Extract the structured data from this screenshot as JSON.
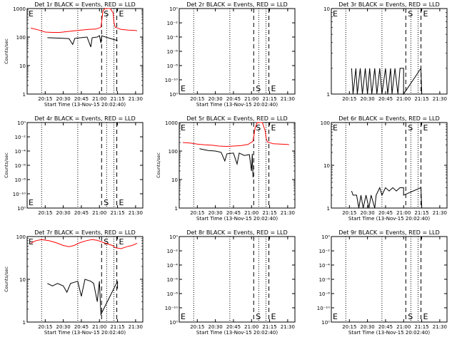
{
  "figure": {
    "panels": [
      {
        "title": "Det 1r BLACK = Events, RED = LLD",
        "ylabel": "Counts/sec",
        "xlabel": "Start Time (13-Nov-15 20:02:40)",
        "y_scale": "log",
        "ylim": [
          1,
          1000
        ],
        "y_ticks": [
          {
            "v": 1,
            "t": "1"
          },
          {
            "v": 10,
            "t": "10"
          },
          {
            "v": 100,
            "t": "100"
          },
          {
            "v": 1000,
            "t": "1000"
          }
        ],
        "x_ticks": [
          "20:15",
          "20:30",
          "20:45",
          "21:00",
          "21:15",
          "21:30"
        ],
        "markers": {
          "S": "S",
          "E": "E"
        },
        "black_series": [
          [
            20.28,
            95
          ],
          [
            20.4,
            92
          ],
          [
            20.5,
            90
          ],
          [
            20.58,
            88
          ],
          [
            20.63,
            55
          ],
          [
            20.66,
            90
          ],
          [
            20.75,
            95
          ],
          [
            20.83,
            100
          ],
          [
            20.88,
            45
          ],
          [
            20.9,
            95
          ],
          [
            20.97,
            100
          ],
          [
            21.0,
            112
          ],
          [
            21.02,
            62
          ],
          [
            21.03,
            110
          ],
          [
            21.25,
            75
          ]
        ],
        "red_series": [
          [
            20.05,
            205
          ],
          [
            20.15,
            180
          ],
          [
            20.25,
            150
          ],
          [
            20.35,
            145
          ],
          [
            20.45,
            145
          ],
          [
            20.55,
            155
          ],
          [
            20.65,
            165
          ],
          [
            20.75,
            175
          ],
          [
            20.85,
            185
          ],
          [
            20.95,
            190
          ],
          [
            21.02,
            220
          ],
          [
            21.05,
            850
          ],
          [
            21.08,
            1000
          ],
          [
            21.15,
            1000
          ],
          [
            21.19,
            700
          ],
          [
            21.2,
            330
          ],
          [
            21.22,
            220
          ],
          [
            21.3,
            185
          ],
          [
            21.4,
            175
          ],
          [
            21.5,
            170
          ],
          [
            21.52,
            165
          ]
        ]
      },
      {
        "title": "Det 2r BLACK = Events, RED = LLD",
        "ylabel": "",
        "xlabel": "Start Time (13-Nov-15 20:02:40)",
        "y_scale": "linear",
        "ylim": [
          0,
          1
        ],
        "y_ticks": [
          {
            "v": 0.0,
            "t": "10⁰"
          },
          {
            "v": 0.167,
            "t": "10⁻¹⁰"
          },
          {
            "v": 0.333,
            "t": "10⁻⁸"
          },
          {
            "v": 0.5,
            "t": "10⁻⁶"
          },
          {
            "v": 0.667,
            "t": "10⁻⁴"
          },
          {
            "v": 0.833,
            "t": "10⁻²"
          },
          {
            "v": 1.0,
            "t": "10⁰"
          }
        ],
        "x_ticks": [
          "20:15",
          "20:30",
          "20:45",
          "21:00",
          "21:15",
          "21:30"
        ],
        "markers": {
          "S": "S",
          "E": "E"
        },
        "black_series": [],
        "red_series": []
      },
      {
        "title": "Det 3r BLACK = Events, RED = LLD",
        "ylabel": "",
        "xlabel": "",
        "y_scale": "log",
        "ylim": [
          1,
          10
        ],
        "y_ticks": [
          {
            "v": 1,
            "t": "1"
          },
          {
            "v": 10,
            "t": "10"
          }
        ],
        "x_ticks": [
          "20:15",
          "20:30",
          "20:45",
          "21:00",
          "21:15",
          "21:30"
        ],
        "markers": {
          "S": "S",
          "E": "E"
        },
        "black_series": [
          [
            20.28,
            2
          ],
          [
            20.3,
            1
          ],
          [
            20.34,
            2
          ],
          [
            20.36,
            1
          ],
          [
            20.4,
            2
          ],
          [
            20.43,
            1
          ],
          [
            20.47,
            2
          ],
          [
            20.5,
            1
          ],
          [
            20.53,
            2
          ],
          [
            20.56,
            1
          ],
          [
            20.6,
            2
          ],
          [
            20.63,
            1
          ],
          [
            20.67,
            2
          ],
          [
            20.7,
            1
          ],
          [
            20.75,
            2
          ],
          [
            20.78,
            1
          ],
          [
            20.82,
            2
          ],
          [
            20.84,
            1
          ],
          [
            20.88,
            2
          ],
          [
            20.92,
            1
          ],
          [
            20.95,
            2
          ],
          [
            21.0,
            2
          ],
          [
            21.0,
            1
          ],
          [
            21.24,
            2
          ],
          [
            21.25,
            1
          ]
        ],
        "red_series": []
      },
      {
        "title": "Det 4r BLACK = Events, RED = LLD",
        "ylabel": "Counts/sec",
        "xlabel": "",
        "y_scale": "linear",
        "ylim": [
          0,
          1
        ],
        "y_ticks": [
          {
            "v": 0.0,
            "t": "10⁰"
          },
          {
            "v": 0.167,
            "t": "10⁻¹⁰"
          },
          {
            "v": 0.333,
            "t": "10⁻⁸"
          },
          {
            "v": 0.5,
            "t": "10⁻⁶"
          },
          {
            "v": 0.667,
            "t": "10⁻⁴"
          },
          {
            "v": 0.833,
            "t": "10⁻²"
          },
          {
            "v": 1.0,
            "t": "10⁰"
          }
        ],
        "x_ticks": [
          "20:15",
          "20:30",
          "20:45",
          "21:00",
          "21:15",
          "21:30"
        ],
        "markers": {
          "S": "S",
          "E": "E"
        },
        "black_series": [],
        "red_series": []
      },
      {
        "title": "Det 5r BLACK = Events, RED = LLD",
        "ylabel": "Counts/sec",
        "xlabel": "Start Time (13-Nov-15 20:02:40)",
        "y_scale": "log",
        "ylim": [
          1,
          1000
        ],
        "y_ticks": [
          {
            "v": 1,
            "t": "1"
          },
          {
            "v": 10,
            "t": "10"
          },
          {
            "v": 100,
            "t": "100"
          },
          {
            "v": 1000,
            "t": "1000"
          }
        ],
        "x_ticks": [
          "20:15",
          "20:30",
          "20:45",
          "21:00",
          "21:15",
          "21:30"
        ],
        "markers": {
          "S": "S",
          "E": "E"
        },
        "black_series": [
          [
            20.28,
            120
          ],
          [
            20.4,
            105
          ],
          [
            20.5,
            100
          ],
          [
            20.58,
            90
          ],
          [
            20.63,
            45
          ],
          [
            20.66,
            80
          ],
          [
            20.75,
            85
          ],
          [
            20.8,
            35
          ],
          [
            20.83,
            85
          ],
          [
            20.9,
            70
          ],
          [
            20.97,
            75
          ],
          [
            21.0,
            20
          ],
          [
            21.01,
            80
          ],
          [
            21.02,
            12
          ]
        ],
        "red_series": [
          [
            20.05,
            200
          ],
          [
            20.15,
            190
          ],
          [
            20.25,
            175
          ],
          [
            20.35,
            165
          ],
          [
            20.45,
            160
          ],
          [
            20.55,
            150
          ],
          [
            20.65,
            145
          ],
          [
            20.75,
            150
          ],
          [
            20.85,
            155
          ],
          [
            20.95,
            170
          ],
          [
            21.02,
            220
          ],
          [
            21.05,
            650
          ],
          [
            21.08,
            1000
          ],
          [
            21.15,
            1000
          ],
          [
            21.19,
            500
          ],
          [
            21.2,
            300
          ],
          [
            21.22,
            210
          ],
          [
            21.3,
            180
          ],
          [
            21.4,
            175
          ],
          [
            21.5,
            170
          ],
          [
            21.52,
            165
          ]
        ]
      },
      {
        "title": "Det 6r BLACK = Events, RED = LLD",
        "ylabel": "",
        "xlabel": "Start Time (13-Nov-15 20:02:40)",
        "y_scale": "log",
        "ylim": [
          1,
          100
        ],
        "y_ticks": [
          {
            "v": 1,
            "t": "1"
          },
          {
            "v": 10,
            "t": "10"
          },
          {
            "v": 100,
            "t": "100"
          }
        ],
        "x_ticks": [
          "20:15",
          "20:30",
          "20:45",
          "21:00",
          "21:15",
          "21:30"
        ],
        "markers": {
          "S": "S",
          "E": "E"
        },
        "black_series": [
          [
            20.28,
            2.5
          ],
          [
            20.3,
            2
          ],
          [
            20.35,
            2
          ],
          [
            20.38,
            1
          ],
          [
            20.41,
            2
          ],
          [
            20.44,
            1
          ],
          [
            20.48,
            2
          ],
          [
            20.52,
            1
          ],
          [
            20.55,
            2
          ],
          [
            20.6,
            1
          ],
          [
            20.62,
            2
          ],
          [
            20.67,
            3
          ],
          [
            20.7,
            2
          ],
          [
            20.75,
            3
          ],
          [
            20.8,
            2.5
          ],
          [
            20.85,
            3
          ],
          [
            20.9,
            2.5
          ],
          [
            20.95,
            3
          ],
          [
            21.0,
            3
          ],
          [
            21.0,
            2
          ],
          [
            21.24,
            3
          ],
          [
            21.25,
            1
          ]
        ],
        "red_series": []
      },
      {
        "title": "Det 7r BLACK = Events, RED = LLD",
        "ylabel": "Counts/sec",
        "xlabel": "Start Time (13-Nov-15 20:02:40)",
        "y_scale": "log",
        "ylim": [
          1,
          100
        ],
        "y_ticks": [
          {
            "v": 1,
            "t": "1"
          },
          {
            "v": 10,
            "t": "10"
          },
          {
            "v": 100,
            "t": "100"
          }
        ],
        "x_ticks": [
          "20:15",
          "20:30",
          "20:45",
          "21:00",
          "21:15",
          "21:30"
        ],
        "markers": {
          "S": "S",
          "E": "E"
        },
        "black_series": [
          [
            20.28,
            8
          ],
          [
            20.35,
            7
          ],
          [
            20.42,
            8
          ],
          [
            20.5,
            7
          ],
          [
            20.55,
            5
          ],
          [
            20.6,
            8
          ],
          [
            20.7,
            9
          ],
          [
            20.75,
            4
          ],
          [
            20.8,
            10
          ],
          [
            20.88,
            9
          ],
          [
            20.92,
            8
          ],
          [
            20.97,
            3
          ],
          [
            21.0,
            9
          ],
          [
            21.02,
            1.5
          ],
          [
            21.25,
            9
          ],
          [
            21.25,
            6
          ]
        ],
        "red_series": [
          [
            20.05,
            70
          ],
          [
            20.12,
            80
          ],
          [
            20.2,
            85
          ],
          [
            20.3,
            80
          ],
          [
            20.4,
            72
          ],
          [
            20.5,
            62
          ],
          [
            20.58,
            58
          ],
          [
            20.65,
            62
          ],
          [
            20.73,
            72
          ],
          [
            20.82,
            80
          ],
          [
            20.9,
            85
          ],
          [
            20.97,
            82
          ],
          [
            21.03,
            75
          ],
          [
            21.1,
            68
          ],
          [
            21.18,
            62
          ],
          [
            21.22,
            55
          ],
          [
            21.3,
            52
          ],
          [
            21.38,
            58
          ],
          [
            21.45,
            62
          ],
          [
            21.5,
            67
          ],
          [
            21.52,
            70
          ]
        ]
      },
      {
        "title": "Det 8r BLACK = Events, RED = LLD",
        "ylabel": "",
        "xlabel": "Start Time (13-Nov-15 20:02:40)",
        "y_scale": "linear",
        "ylim": [
          0,
          1
        ],
        "y_ticks": [
          {
            "v": 0.0,
            "t": "10⁰"
          },
          {
            "v": 0.167,
            "t": "10⁻¹⁰"
          },
          {
            "v": 0.333,
            "t": "10⁻⁸"
          },
          {
            "v": 0.5,
            "t": "10⁻⁶"
          },
          {
            "v": 0.667,
            "t": "10⁻⁴"
          },
          {
            "v": 0.833,
            "t": "10⁻²"
          },
          {
            "v": 1.0,
            "t": "10⁰"
          }
        ],
        "x_ticks": [
          "20:15",
          "20:30",
          "20:45",
          "21:00",
          "21:15",
          "21:30"
        ],
        "markers": {
          "S": "S",
          "E": "E"
        },
        "black_series": [],
        "red_series": []
      },
      {
        "title": "Det 9r BLACK = Events, RED = LLD",
        "ylabel": "",
        "xlabel": "Start Time (13-Nov-15 20:02:40)",
        "y_scale": "linear",
        "ylim": [
          0,
          1
        ],
        "y_ticks": [
          {
            "v": 0.0,
            "t": "10⁰"
          },
          {
            "v": 0.167,
            "t": "10⁻¹⁰"
          },
          {
            "v": 0.333,
            "t": "10⁻⁸"
          },
          {
            "v": 0.5,
            "t": "10⁻⁶"
          },
          {
            "v": 0.667,
            "t": "10⁻⁴"
          },
          {
            "v": 0.833,
            "t": "10⁻²"
          },
          {
            "v": 1.0,
            "t": "10⁰"
          }
        ],
        "x_ticks": [
          "20:15",
          "20:30",
          "20:45",
          "21:00",
          "21:15",
          "21:30"
        ],
        "markers": {
          "S": "S",
          "E": "E"
        },
        "black_series": [],
        "red_series": []
      }
    ]
  },
  "chart_data": [
    {
      "type": "line",
      "title": "Det 1r BLACK = Events, RED = LLD",
      "xlabel": "Start Time (13-Nov-15 20:02:40)",
      "ylabel": "Counts/sec",
      "y_scale": "log",
      "ylim": [
        1,
        1000
      ],
      "series": [
        {
          "name": "Events",
          "color": "#000000"
        },
        {
          "name": "LLD",
          "color": "#ff0000"
        }
      ]
    },
    {
      "type": "line",
      "title": "Det 2r BLACK = Events, RED = LLD",
      "xlabel": "Start Time (13-Nov-15 20:02:40)",
      "series": []
    },
    {
      "type": "line",
      "title": "Det 3r BLACK = Events, RED = LLD",
      "y_scale": "log",
      "ylim": [
        1,
        10
      ],
      "series": [
        {
          "name": "Events",
          "color": "#000000"
        }
      ]
    },
    {
      "type": "line",
      "title": "Det 4r BLACK = Events, RED = LLD",
      "ylabel": "Counts/sec",
      "series": []
    },
    {
      "type": "line",
      "title": "Det 5r BLACK = Events, RED = LLD",
      "xlabel": "Start Time (13-Nov-15 20:02:40)",
      "ylabel": "Counts/sec",
      "y_scale": "log",
      "ylim": [
        1,
        1000
      ],
      "series": [
        {
          "name": "Events",
          "color": "#000000"
        },
        {
          "name": "LLD",
          "color": "#ff0000"
        }
      ]
    },
    {
      "type": "line",
      "title": "Det 6r BLACK = Events, RED = LLD",
      "xlabel": "Start Time (13-Nov-15 20:02:40)",
      "y_scale": "log",
      "ylim": [
        1,
        100
      ],
      "series": [
        {
          "name": "Events",
          "color": "#000000"
        }
      ]
    },
    {
      "type": "line",
      "title": "Det 7r BLACK = Events, RED = LLD",
      "xlabel": "Start Time (13-Nov-15 20:02:40)",
      "ylabel": "Counts/sec",
      "y_scale": "log",
      "ylim": [
        1,
        100
      ],
      "series": [
        {
          "name": "Events",
          "color": "#000000"
        },
        {
          "name": "LLD",
          "color": "#ff0000"
        }
      ]
    },
    {
      "type": "line",
      "title": "Det 8r BLACK = Events, RED = LLD",
      "xlabel": "Start Time (13-Nov-15 20:02:40)",
      "series": []
    },
    {
      "type": "line",
      "title": "Det 9r BLACK = Events, RED = LLD",
      "xlabel": "Start Time (13-Nov-15 20:02:40)",
      "series": []
    }
  ]
}
